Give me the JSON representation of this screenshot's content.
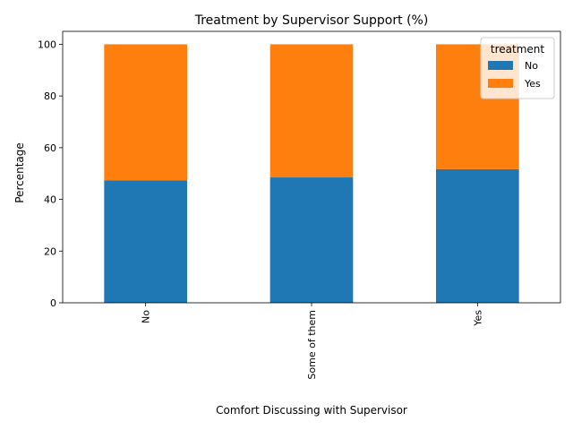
{
  "chart_data": {
    "type": "bar",
    "stacked": true,
    "title": "Treatment by Supervisor Support (%)",
    "xlabel": "Comfort Discussing with Supervisor",
    "ylabel": "Percentage",
    "categories": [
      "No",
      "Some of them",
      "Yes"
    ],
    "ylim": [
      0,
      105
    ],
    "yticks": [
      0,
      20,
      40,
      60,
      80,
      100
    ],
    "grid": false,
    "legend": {
      "title": "treatment",
      "placement": "top-right"
    },
    "series": [
      {
        "name": "No",
        "color": "#1f77b4",
        "values": [
          47.4,
          48.5,
          51.7
        ]
      },
      {
        "name": "Yes",
        "color": "#ff7f0e",
        "values": [
          52.6,
          51.5,
          48.3
        ]
      }
    ]
  }
}
